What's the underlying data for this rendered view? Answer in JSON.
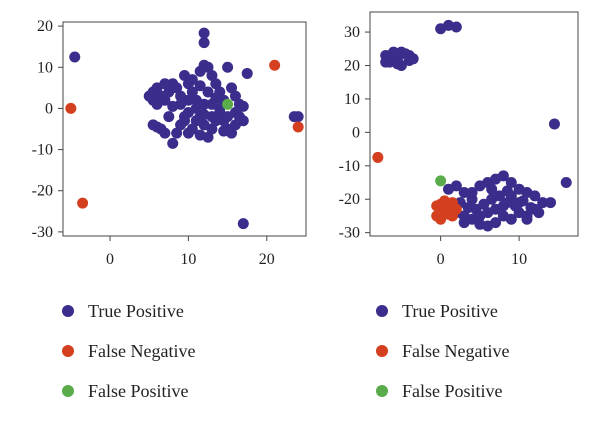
{
  "chart_data": [
    {
      "type": "scatter",
      "title": "",
      "xlabel": "",
      "ylabel": "",
      "xlim": [
        -6,
        25
      ],
      "ylim": [
        -31,
        21
      ],
      "xticks": [
        0,
        10,
        20
      ],
      "yticks": [
        -30,
        -20,
        -10,
        0,
        10,
        20
      ],
      "grid": false,
      "legend": "bottom-left",
      "series": [
        {
          "name": "True Positive",
          "color": "#3a2d8c",
          "points": [
            [
              -4.5,
              12.5
            ],
            [
              12.0,
              18.3
            ],
            [
              12.0,
              16.0
            ],
            [
              17.0,
              -28.0
            ],
            [
              17.5,
              8.5
            ],
            [
              23.5,
              -2.0
            ],
            [
              24.0,
              -2.0
            ],
            [
              5.0,
              3.0
            ],
            [
              5.5,
              4.0
            ],
            [
              6.0,
              5.0
            ],
            [
              6.5,
              3.0
            ],
            [
              7.0,
              2.0
            ],
            [
              6.0,
              1.0
            ],
            [
              5.5,
              2.0
            ],
            [
              7.5,
              4.0
            ],
            [
              8.0,
              6.0
            ],
            [
              8.5,
              5.0
            ],
            [
              9.0,
              3.0
            ],
            [
              9.5,
              8.0
            ],
            [
              10.0,
              6.0
            ],
            [
              10.5,
              4.0
            ],
            [
              11.0,
              2.0
            ],
            [
              11.5,
              9.0
            ],
            [
              12.0,
              10.5
            ],
            [
              12.5,
              10.0
            ],
            [
              13.0,
              8.0
            ],
            [
              13.5,
              6.0
            ],
            [
              14.0,
              4.0
            ],
            [
              14.5,
              2.0
            ],
            [
              15.0,
              10.0
            ],
            [
              15.5,
              5.0
            ],
            [
              16.0,
              3.0
            ],
            [
              16.5,
              1.0
            ],
            [
              17.0,
              0.5
            ],
            [
              16.5,
              -2.0
            ],
            [
              16.0,
              -4.0
            ],
            [
              15.5,
              -6.0
            ],
            [
              15.0,
              -5.0
            ],
            [
              14.5,
              -3.0
            ],
            [
              14.0,
              -1.0
            ],
            [
              13.5,
              -3.0
            ],
            [
              13.0,
              -5.0
            ],
            [
              12.5,
              -7.0
            ],
            [
              12.0,
              -4.0
            ],
            [
              11.5,
              -2.0
            ],
            [
              11.0,
              -3.0
            ],
            [
              10.5,
              -5.0
            ],
            [
              10.0,
              -1.0
            ],
            [
              9.5,
              -3.0
            ],
            [
              9.0,
              -4.0
            ],
            [
              8.5,
              -6.0
            ],
            [
              8.0,
              -8.5
            ],
            [
              7.5,
              -2.0
            ],
            [
              7.0,
              -6.0
            ],
            [
              6.5,
              -5.0
            ],
            [
              6.0,
              -4.5
            ],
            [
              5.5,
              -4.0
            ],
            [
              11.0,
              0.0
            ],
            [
              12.0,
              1.0
            ],
            [
              13.0,
              1.0
            ],
            [
              14.0,
              0.0
            ],
            [
              10.0,
              2.0
            ],
            [
              9.0,
              1.0
            ],
            [
              8.0,
              0.5
            ],
            [
              12.5,
              4.0
            ],
            [
              13.5,
              2.5
            ],
            [
              11.5,
              5.5
            ],
            [
              10.5,
              7.0
            ],
            [
              16.0,
              -1.0
            ],
            [
              15.0,
              -2.0
            ],
            [
              13.0,
              -2.0
            ],
            [
              12.0,
              -1.5
            ],
            [
              10.0,
              -6.0
            ],
            [
              11.5,
              -6.5
            ],
            [
              14.5,
              -5.5
            ],
            [
              9.5,
              -2.0
            ],
            [
              7.0,
              6.0
            ],
            [
              17.0,
              -3.0
            ]
          ]
        },
        {
          "name": "False Negative",
          "color": "#d4401f",
          "points": [
            [
              -5.0,
              0.0
            ],
            [
              -3.5,
              -23.0
            ],
            [
              21.0,
              10.5
            ],
            [
              24.0,
              -4.5
            ]
          ]
        },
        {
          "name": "False Positive",
          "color": "#5aac4a",
          "points": [
            [
              15.0,
              1.0
            ]
          ]
        }
      ]
    },
    {
      "type": "scatter",
      "title": "",
      "xlabel": "",
      "ylabel": "",
      "xlim": [
        -9,
        17.5
      ],
      "ylim": [
        -31,
        36
      ],
      "xticks": [
        0,
        10
      ],
      "yticks": [
        -30,
        -20,
        -10,
        0,
        10,
        20,
        30
      ],
      "grid": false,
      "legend": "bottom-left",
      "series": [
        {
          "name": "True Positive",
          "color": "#3a2d8c",
          "points": [
            [
              -7.0,
              23.0
            ],
            [
              -6.5,
              21.0
            ],
            [
              -6.0,
              24.0
            ],
            [
              -5.5,
              22.0
            ],
            [
              -5.0,
              20.0
            ],
            [
              -4.5,
              23.5
            ],
            [
              -4.0,
              21.5
            ],
            [
              -7.0,
              21.0
            ],
            [
              -6.0,
              22.0
            ],
            [
              -5.0,
              24.0
            ],
            [
              -4.0,
              23.0
            ],
            [
              -5.5,
              20.5
            ],
            [
              -3.5,
              22.0
            ],
            [
              0.0,
              31.0
            ],
            [
              1.0,
              32.0
            ],
            [
              2.0,
              31.5
            ],
            [
              14.5,
              2.5
            ],
            [
              16.0,
              -15.0
            ],
            [
              1.0,
              -17.0
            ],
            [
              2.0,
              -16.0
            ],
            [
              3.0,
              -18.0
            ],
            [
              4.0,
              -20.0
            ],
            [
              5.0,
              -16.0
            ],
            [
              6.0,
              -15.0
            ],
            [
              7.0,
              -14.0
            ],
            [
              8.0,
              -13.0
            ],
            [
              9.0,
              -15.0
            ],
            [
              10.0,
              -17.0
            ],
            [
              11.0,
              -18.0
            ],
            [
              12.0,
              -19.0
            ],
            [
              13.0,
              -21.0
            ],
            [
              12.0,
              -23.0
            ],
            [
              11.0,
              -25.0
            ],
            [
              10.0,
              -24.0
            ],
            [
              9.0,
              -26.0
            ],
            [
              8.0,
              -25.0
            ],
            [
              7.0,
              -27.0
            ],
            [
              6.0,
              -28.0
            ],
            [
              5.0,
              -27.5
            ],
            [
              4.0,
              -26.0
            ],
            [
              3.0,
              -25.0
            ],
            [
              2.0,
              -24.0
            ],
            [
              1.5,
              -22.0
            ],
            [
              2.5,
              -21.0
            ],
            [
              3.5,
              -22.5
            ],
            [
              4.5,
              -23.0
            ],
            [
              5.5,
              -21.5
            ],
            [
              6.5,
              -20.0
            ],
            [
              7.5,
              -19.0
            ],
            [
              8.5,
              -21.0
            ],
            [
              9.5,
              -22.0
            ],
            [
              10.5,
              -20.5
            ],
            [
              11.5,
              -22.5
            ],
            [
              12.5,
              -24.0
            ],
            [
              6.0,
              -24.0
            ],
            [
              7.0,
              -23.0
            ],
            [
              8.0,
              -22.0
            ],
            [
              5.0,
              -25.0
            ],
            [
              9.0,
              -19.0
            ],
            [
              10.0,
              -21.0
            ],
            [
              4.0,
              -18.0
            ],
            [
              11.0,
              -26.0
            ],
            [
              3.0,
              -27.0
            ],
            [
              6.5,
              -17.0
            ],
            [
              8.5,
              -17.5
            ],
            [
              14.0,
              -21.0
            ]
          ]
        },
        {
          "name": "False Negative",
          "color": "#d4401f",
          "points": [
            [
              -8.0,
              -7.5
            ],
            [
              0.0,
              -21.5
            ],
            [
              0.5,
              -23.0
            ],
            [
              1.0,
              -24.5
            ],
            [
              1.5,
              -21.0
            ],
            [
              -0.5,
              -22.0
            ],
            [
              0.0,
              -26.0
            ],
            [
              -0.5,
              -25.0
            ],
            [
              1.0,
              -22.5
            ],
            [
              0.5,
              -20.5
            ],
            [
              2.0,
              -23.0
            ],
            [
              1.5,
              -25.0
            ],
            [
              0.0,
              -24.0
            ]
          ]
        },
        {
          "name": "False Positive",
          "color": "#5aac4a",
          "points": [
            [
              0.0,
              -14.5
            ]
          ]
        }
      ]
    }
  ]
}
